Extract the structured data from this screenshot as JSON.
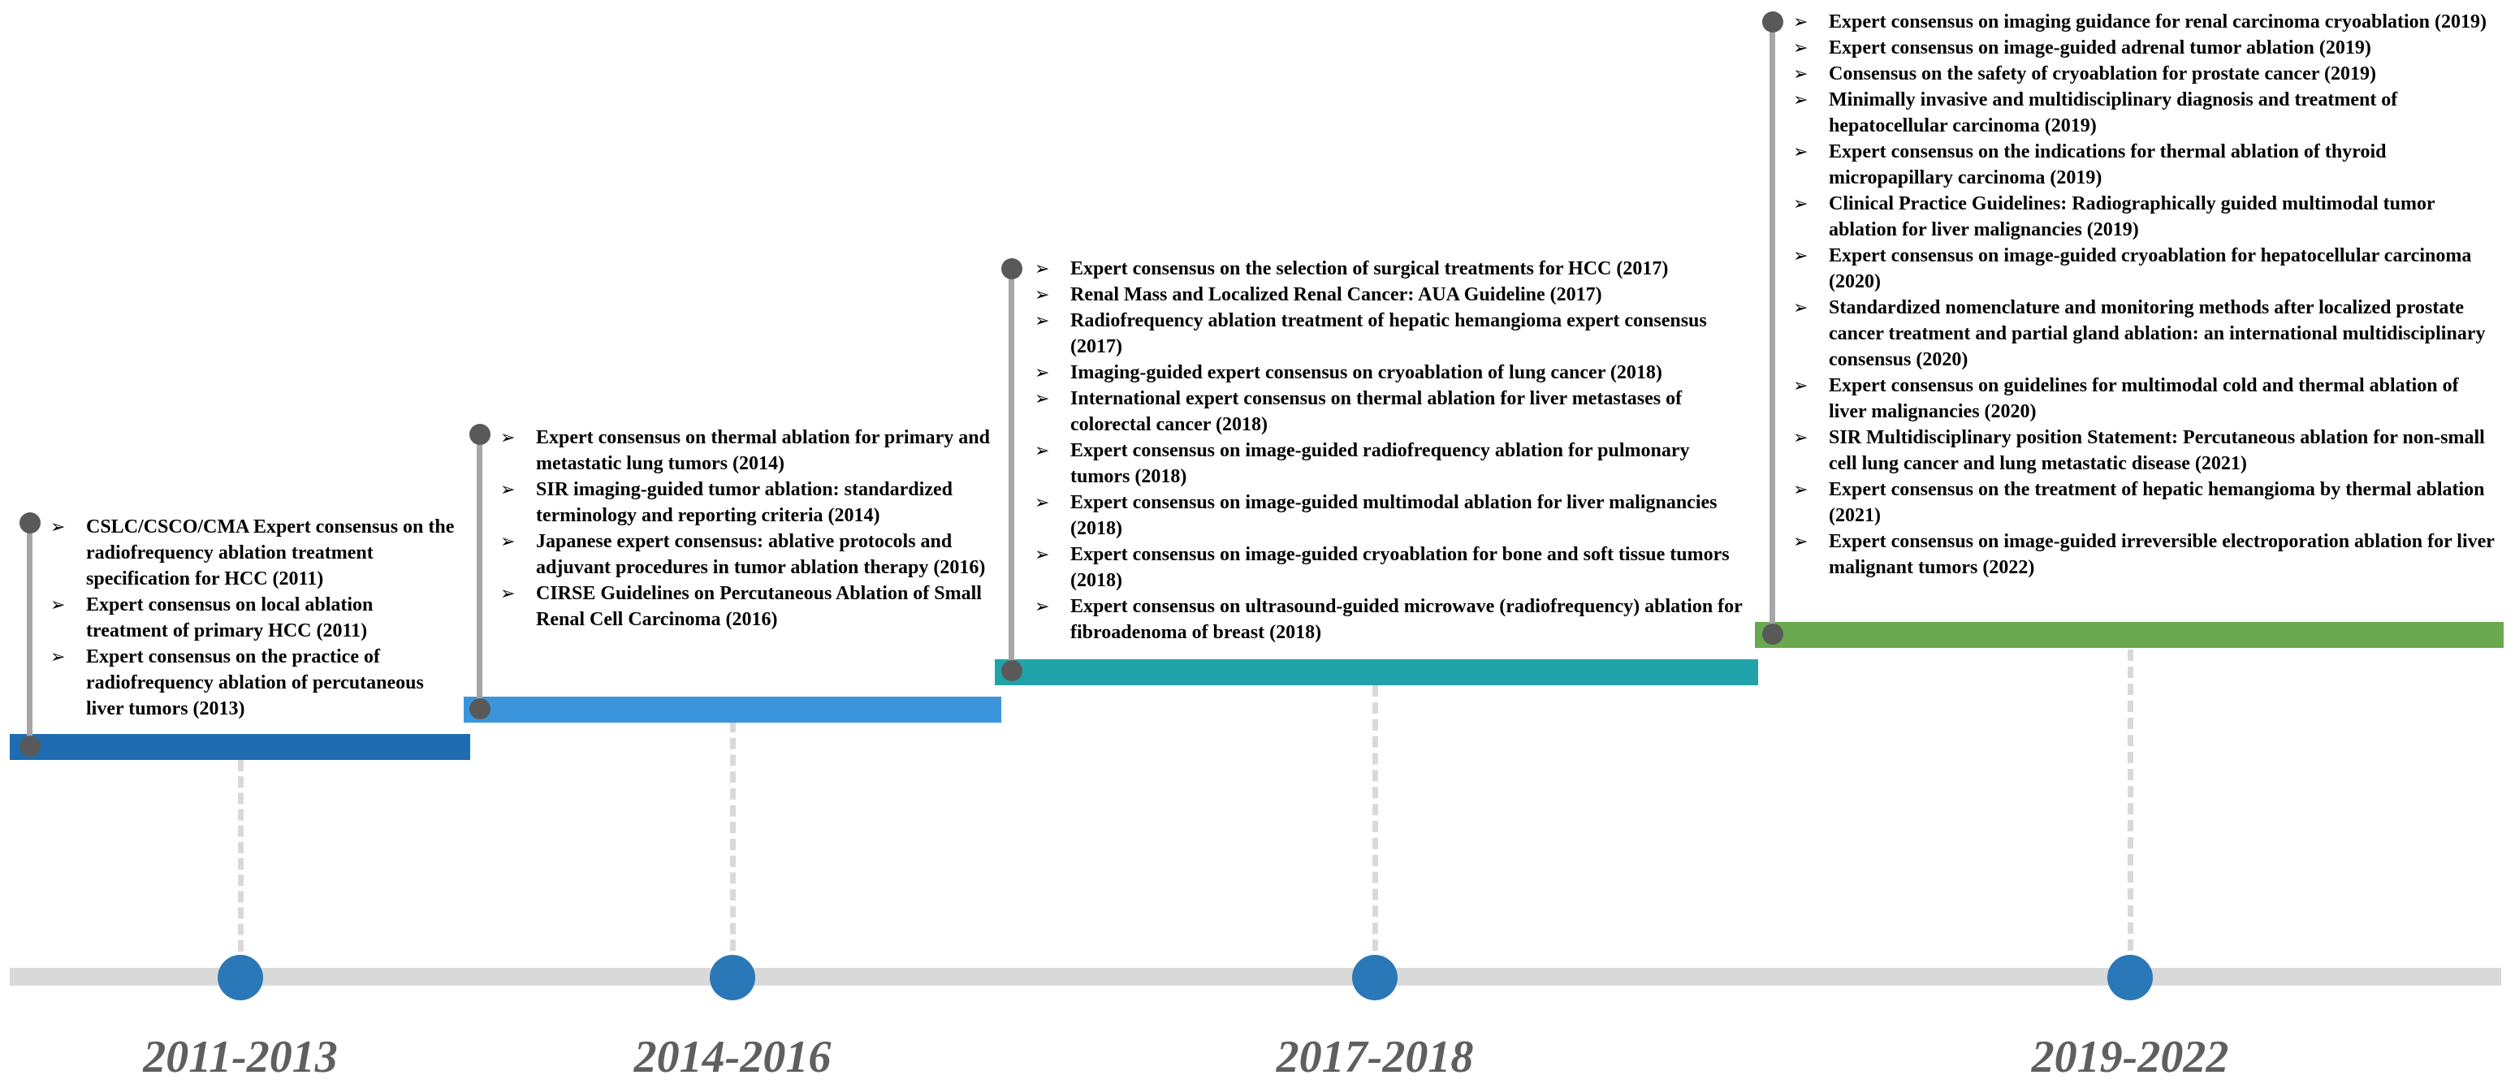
{
  "periods": [
    {
      "label": "2011-2013",
      "color": "#1f6db0",
      "items": [
        "CSLC/CSCO/CMA Expert consensus on the radiofrequency ablation treatment specification for HCC (2011)",
        "Expert consensus on local ablation treatment of primary HCC (2011)",
        "Expert consensus on the practice of radiofrequency ablation of percutaneous liver tumors (2013)"
      ]
    },
    {
      "label": "2014-2016",
      "color": "#3a95dd",
      "items": [
        "Expert consensus on thermal ablation for primary and metastatic lung tumors (2014)",
        "SIR imaging-guided tumor ablation: standardized terminology and reporting criteria (2014)",
        "Japanese expert consensus: ablative protocols and adjuvant procedures in tumor ablation therapy (2016)",
        "CIRSE Guidelines on Percutaneous Ablation of Small Renal Cell Carcinoma (2016)"
      ]
    },
    {
      "label": "2017-2018",
      "color": "#20a3a8",
      "items": [
        "Expert consensus on the selection of surgical treatments for HCC (2017)",
        "Renal Mass and Localized Renal Cancer: AUA Guideline (2017)",
        "Radiofrequency ablation treatment of hepatic hemangioma expert consensus (2017)",
        "Imaging-guided expert consensus on cryoablation of lung cancer (2018)",
        "International expert consensus on thermal ablation for liver metastases of colorectal cancer (2018)",
        "Expert consensus on image-guided radiofrequency ablation for pulmonary tumors (2018)",
        "Expert consensus on image-guided multimodal ablation for liver malignancies (2018)",
        "Expert consensus on image-guided cryoablation for bone and soft tissue tumors (2018)",
        "Expert consensus on ultrasound-guided microwave (radiofrequency) ablation for fibroadenoma of breast (2018)"
      ]
    },
    {
      "label": "2019-2022",
      "color": "#6aa84f",
      "items": [
        "Expert consensus on imaging guidance for renal carcinoma cryoablation (2019)",
        "Expert consensus on image-guided adrenal tumor ablation (2019)",
        "Consensus on the safety of cryoablation for prostate cancer (2019)",
        "Minimally invasive and multidisciplinary diagnosis and treatment of hepatocellular carcinoma (2019)",
        "Expert consensus on the indications for thermal ablation of thyroid micropapillary carcinoma (2019)",
        "Clinical Practice Guidelines: Radiographically guided multimodal tumor ablation for liver malignancies (2019)",
        "Expert consensus on image-guided cryoablation for hepatocellular carcinoma (2020)",
        "Standardized nomenclature and monitoring methods after localized prostate cancer treatment and partial gland ablation: an international multidisciplinary consensus (2020)",
        "Expert consensus on guidelines for multimodal cold and thermal ablation of liver malignancies (2020)",
        "SIR Multidisciplinary position Statement: Percutaneous ablation for non-small cell lung cancer and lung metastatic disease (2021)",
        "Expert consensus on the treatment of hepatic hemangioma by thermal ablation (2021)",
        "Expert consensus on image-guided irreversible electroporation ablation for liver malignant tumors (2022)"
      ]
    }
  ],
  "bullet_icon": "arrowhead-bullet-icon",
  "colors": {
    "axis": "#d9d9d9",
    "dot": "#2a78b8",
    "stem": "#a6a6a6",
    "knob": "#595959",
    "era_label": "#5f5f5f"
  }
}
